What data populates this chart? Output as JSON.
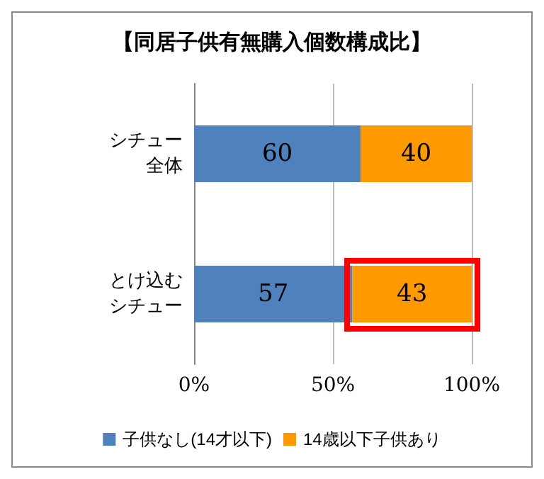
{
  "chart_data": {
    "type": "bar",
    "orientation": "horizontal",
    "stacked": true,
    "title": "【同居子供有無購入個数構成比】",
    "categories": [
      "シチュー全体",
      "とけ込むシチュー"
    ],
    "series": [
      {
        "name": "子供なし(14才以下)",
        "color": "#4f81bd",
        "values": [
          60,
          57
        ]
      },
      {
        "name": "14歳以下子供あり",
        "color": "#ff9900",
        "values": [
          40,
          43
        ]
      }
    ],
    "xlim": [
      0,
      100
    ],
    "xticks": [
      {
        "value": 0,
        "label": "0%"
      },
      {
        "value": 50,
        "label": "50%"
      },
      {
        "value": 100,
        "label": "100%"
      }
    ],
    "grid": "x",
    "legend": "bottom",
    "data_labels": true
  }
}
